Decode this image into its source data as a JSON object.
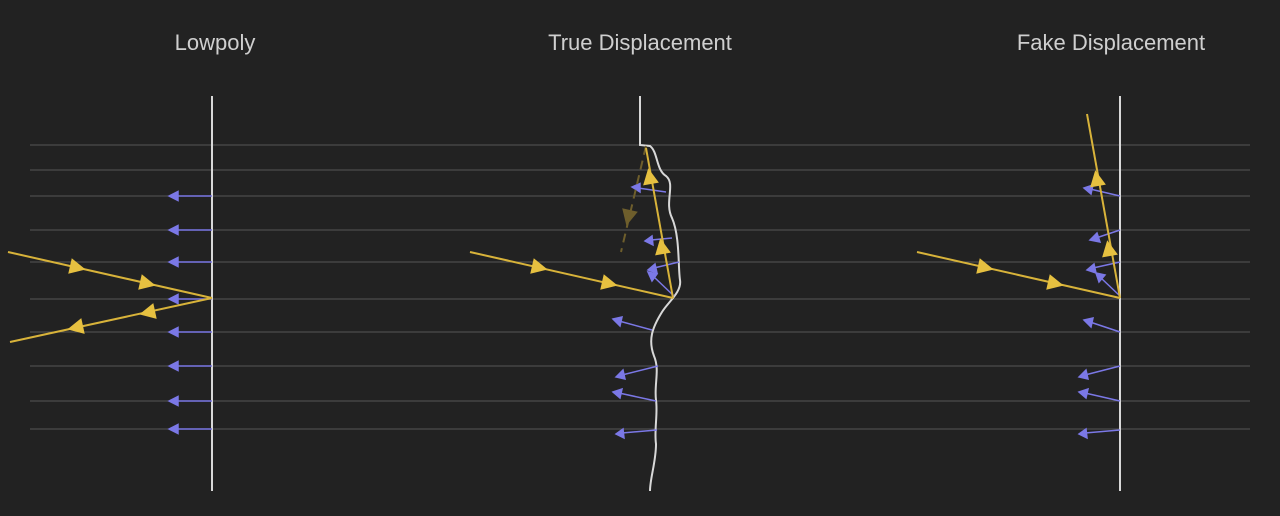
{
  "panels": [
    {
      "title": "Lowpoly"
    },
    {
      "title": "True Displacement"
    },
    {
      "title": "Fake Displacement"
    }
  ],
  "colors": {
    "background": "#222222",
    "surface": "#d8d8d8",
    "guide_line": "#555555",
    "ray": "#d8b33a",
    "ray_ghost": "#6e5e2c",
    "normal": "#7b78e6",
    "title": "#cfcfcf"
  }
}
